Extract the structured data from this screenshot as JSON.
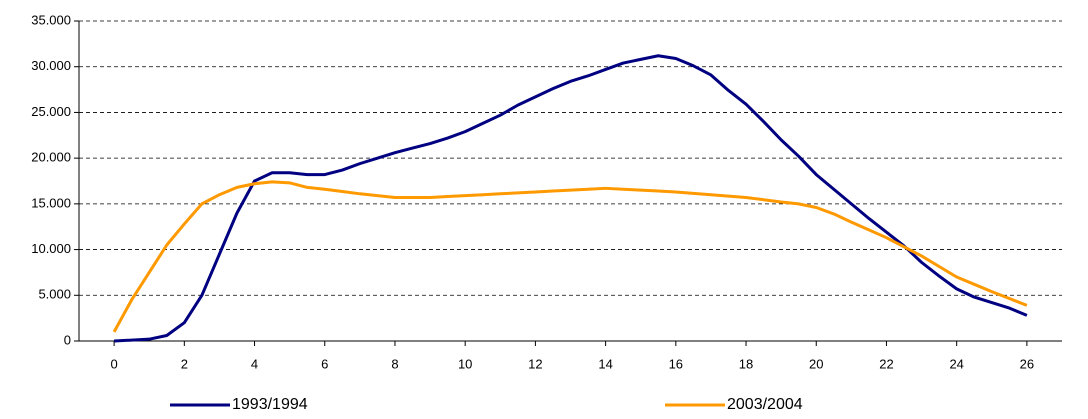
{
  "chart_data": {
    "type": "line",
    "x": [
      0,
      0.5,
      1,
      1.5,
      2,
      2.5,
      3,
      3.5,
      4,
      4.5,
      5,
      5.5,
      6,
      6.5,
      7,
      7.5,
      8,
      8.5,
      9,
      9.5,
      10,
      10.5,
      11,
      11.5,
      12,
      12.5,
      13,
      13.5,
      14,
      14.5,
      15,
      15.5,
      16,
      16.5,
      17,
      17.5,
      18,
      18.5,
      19,
      19.5,
      20,
      20.5,
      21,
      21.5,
      22,
      22.5,
      23,
      23.5,
      24,
      24.5,
      25,
      25.5,
      26
    ],
    "series": [
      {
        "name": "1993/1994",
        "color": "#000080",
        "values": [
          0,
          100,
          200,
          600,
          2000,
          5000,
          9500,
          14000,
          17500,
          18400,
          18400,
          18200,
          18200,
          18700,
          19400,
          20000,
          20600,
          21100,
          21600,
          22200,
          22900,
          23800,
          24700,
          25800,
          26700,
          27600,
          28400,
          29000,
          29700,
          30400,
          30800,
          31200,
          30900,
          30100,
          29100,
          27400,
          25900,
          24000,
          22000,
          20200,
          18200,
          16600,
          15000,
          13400,
          11900,
          10400,
          8600,
          7100,
          5700,
          4800,
          4200,
          3600,
          2800
        ]
      },
      {
        "name": "2003/2004",
        "color": "#ff9900",
        "values": [
          1000,
          4500,
          7500,
          10500,
          12800,
          15000,
          16000,
          16800,
          17200,
          17400,
          17300,
          16800,
          16600,
          16350,
          16100,
          15900,
          15700,
          15700,
          15700,
          15800,
          15900,
          16000,
          16100,
          16200,
          16300,
          16400,
          16500,
          16600,
          16700,
          16600,
          16500,
          16400,
          16300,
          16150,
          16000,
          15850,
          15700,
          15450,
          15200,
          15000,
          14600,
          13900,
          13000,
          12150,
          11300,
          10300,
          9300,
          8150,
          7000,
          6200,
          5400,
          4650,
          3900
        ]
      }
    ],
    "xlim": [
      -1,
      27
    ],
    "xticks": [
      0,
      2,
      4,
      6,
      8,
      10,
      12,
      14,
      16,
      18,
      20,
      22,
      24,
      26
    ],
    "ylim": [
      0,
      35000
    ],
    "yticks": [
      0,
      {
        "value": 5000,
        "label": "5.000"
      },
      {
        "value": 10000,
        "label": "10.000"
      },
      {
        "value": 15000,
        "label": "15.000"
      },
      {
        "value": 20000,
        "label": "20.000"
      },
      {
        "value": 25000,
        "label": "25.000"
      },
      {
        "value": 30000,
        "label": "30.000"
      },
      {
        "value": 35000,
        "label": "35.000"
      }
    ],
    "grid": true,
    "legend": "bottom"
  }
}
